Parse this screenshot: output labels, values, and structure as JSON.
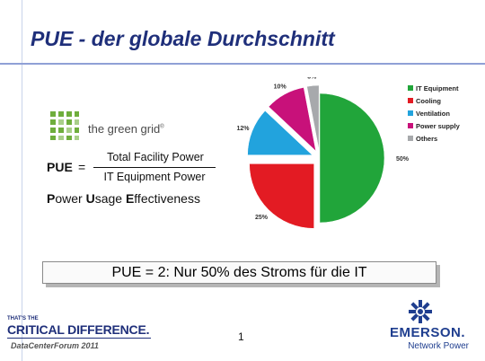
{
  "header": {
    "title": "PUE - der globale Durchschnitt"
  },
  "logo": {
    "text": "the green grid",
    "mark": "®"
  },
  "formula": {
    "label": "PUE",
    "equals": "=",
    "numerator": "Total Facility Power",
    "denominator": "IT Equipment Power",
    "desc_parts": [
      {
        "initial": "P",
        "rest": "ower "
      },
      {
        "initial": "U",
        "rest": "sage "
      },
      {
        "initial": "E",
        "rest": "ffectiveness"
      }
    ]
  },
  "callout": {
    "text": "PUE = 2: Nur 50% des Stroms für die IT"
  },
  "footer": {
    "tagline_small": "THAT'S THE",
    "tagline_big": "CRITICAL DIFFERENCE.",
    "event": "DataCenterForum 2011",
    "page_number": "1",
    "brand": "EMERSON.",
    "brand_sub": "Network Power"
  },
  "colors": {
    "title": "#1f2f7a",
    "it_equipment": "#21a53a",
    "cooling": "#e31b23",
    "ventilation": "#22a3dd",
    "power_supply": "#c8117a",
    "others": "#a7a9ac"
  },
  "chart_data": {
    "type": "pie",
    "exploded": true,
    "legend_position": "right",
    "slices": [
      {
        "name": "IT Equipment",
        "value": 50,
        "label": "50%",
        "color": "#21a53a"
      },
      {
        "name": "Cooling",
        "value": 25,
        "label": "25%",
        "color": "#e31b23"
      },
      {
        "name": "Ventilation",
        "value": 12,
        "label": "12%",
        "color": "#22a3dd"
      },
      {
        "name": "Power supply",
        "value": 10,
        "label": "10%",
        "color": "#c8117a"
      },
      {
        "name": "Others",
        "value": 3,
        "label": "3%",
        "color": "#a7a9ac"
      }
    ]
  }
}
